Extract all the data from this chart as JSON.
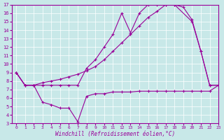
{
  "bg_color": "#c8e8e8",
  "line_color": "#990099",
  "grid_color": "#aacccc",
  "xlabel": "Windchill (Refroidissement éolien,°C)",
  "xlim": [
    -0.5,
    23
  ],
  "ylim": [
    3,
    17
  ],
  "xticks": [
    0,
    1,
    2,
    3,
    4,
    5,
    6,
    7,
    8,
    9,
    10,
    11,
    12,
    13,
    14,
    15,
    16,
    17,
    18,
    19,
    20,
    21,
    22,
    23
  ],
  "yticks": [
    3,
    4,
    5,
    6,
    7,
    8,
    9,
    10,
    11,
    12,
    13,
    14,
    15,
    16,
    17
  ],
  "line1": {
    "x": [
      0,
      1,
      2,
      3,
      4,
      5,
      6,
      7,
      8,
      9,
      10,
      11,
      12,
      13,
      14,
      15,
      16,
      17,
      18,
      20,
      21,
      22,
      23
    ],
    "y": [
      9,
      7.5,
      7.5,
      7.5,
      7.5,
      7.5,
      7.5,
      7.5,
      9.5,
      10.5,
      12.0,
      13.5,
      16.0,
      13.7,
      16.0,
      17.0,
      17.0,
      17.0,
      17.0,
      15.0,
      11.5,
      7.5,
      7.5
    ]
  },
  "line2": {
    "x": [
      0,
      1,
      2,
      3,
      4,
      5,
      6,
      7,
      8,
      9,
      10,
      11,
      12,
      13,
      14,
      15,
      16,
      17,
      18,
      19,
      20,
      21,
      22,
      23
    ],
    "y": [
      9,
      7.5,
      7.5,
      7.8,
      8.0,
      8.2,
      8.5,
      8.8,
      9.2,
      9.7,
      10.5,
      11.5,
      12.5,
      13.5,
      14.5,
      15.5,
      16.2,
      17.0,
      17.0,
      16.7,
      15.2,
      11.5,
      7.5,
      7.5
    ]
  },
  "line3": {
    "x": [
      0,
      1,
      2,
      3,
      4,
      5,
      6,
      7,
      8,
      9,
      10,
      11,
      12,
      13,
      14,
      15,
      16,
      17,
      18,
      19,
      20,
      21,
      22,
      23
    ],
    "y": [
      9,
      7.5,
      7.5,
      5.5,
      5.2,
      4.8,
      4.8,
      3.2,
      6.2,
      6.5,
      6.5,
      6.7,
      6.7,
      6.7,
      6.8,
      6.8,
      6.8,
      6.8,
      6.8,
      6.8,
      6.8,
      6.8,
      6.8,
      7.5
    ]
  }
}
